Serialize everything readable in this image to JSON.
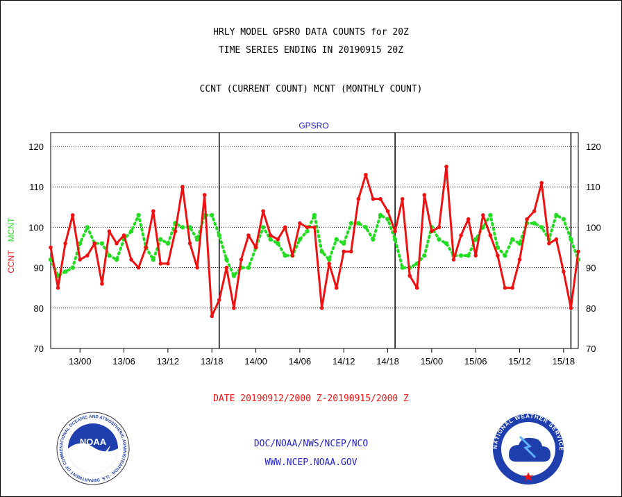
{
  "titles": {
    "line1": "HRLY MODEL GPSRO DATA COUNTS for 20Z",
    "line2": "TIME SERIES ENDING IN 20190915 20Z",
    "line3": "CCNT (CURRENT COUNT) MCNT (MONTHLY COUNT)"
  },
  "footer": {
    "date_range": "DATE 20190912/2000 Z-20190915/2000 Z",
    "org": "DOC/NOAA/NWS/NCEP/NCO",
    "url": "WWW.NCEP.NOAA.GOV"
  },
  "logos": {
    "noaa_text": "NOAA",
    "noaa_ring": "NATIONAL OCEANIC AND ATMOSPHERIC ADMINISTRATION · U.S. DEPARTMENT OF COMMERCE",
    "nws_ring": "NATIONAL WEATHER SERVICE"
  },
  "colors": {
    "ccnt": "#ee1111",
    "mcnt": "#22dd22",
    "title": "#2222cc",
    "date": "#ee1111"
  },
  "chart_data": {
    "type": "line",
    "title": "GPSRO",
    "ylabel": {
      "ccnt": "CCNT",
      "mcnt": "MCNT"
    },
    "ylim": [
      70,
      120
    ],
    "yticks": [
      70,
      80,
      90,
      100,
      110,
      120
    ],
    "xlim": [
      -4,
      68
    ],
    "xticks": [
      {
        "x": 0,
        "label": "13/00"
      },
      {
        "x": 6,
        "label": "13/06"
      },
      {
        "x": 12,
        "label": "13/12"
      },
      {
        "x": 18,
        "label": "13/18"
      },
      {
        "x": 24,
        "label": "14/00"
      },
      {
        "x": 30,
        "label": "14/06"
      },
      {
        "x": 36,
        "label": "14/12"
      },
      {
        "x": 42,
        "label": "14/18"
      },
      {
        "x": 48,
        "label": "15/00"
      },
      {
        "x": 54,
        "label": "15/06"
      },
      {
        "x": 60,
        "label": "15/12"
      },
      {
        "x": 66,
        "label": "15/18"
      }
    ],
    "day_boundaries": [
      19,
      43,
      67
    ],
    "grid": "horizontal dotted",
    "x": [
      -4,
      -3,
      -2,
      -1,
      0,
      1,
      2,
      3,
      4,
      5,
      6,
      7,
      8,
      9,
      10,
      11,
      12,
      13,
      14,
      15,
      16,
      17,
      18,
      19,
      20,
      21,
      22,
      23,
      24,
      25,
      26,
      27,
      28,
      29,
      30,
      31,
      32,
      33,
      34,
      35,
      36,
      37,
      38,
      39,
      40,
      41,
      42,
      43,
      44,
      45,
      46,
      47,
      48,
      49,
      50,
      51,
      52,
      53,
      54,
      55,
      56,
      57,
      58,
      59,
      60,
      61,
      62,
      63,
      64,
      65,
      66,
      67,
      68
    ],
    "series": [
      {
        "name": "CCNT",
        "values": [
          95,
          85,
          96,
          103,
          92,
          93,
          96,
          86,
          99,
          96,
          98,
          92,
          90,
          95,
          104,
          91,
          91,
          99,
          110,
          96,
          90,
          108,
          78,
          82,
          90,
          80,
          92,
          98,
          95,
          104,
          98,
          97,
          100,
          93,
          101,
          100,
          100,
          80,
          91,
          85,
          94,
          94,
          107,
          113,
          107,
          107,
          104,
          99,
          107,
          88,
          85,
          108,
          99,
          100,
          115,
          92,
          98,
          102,
          93,
          103,
          98,
          93,
          85,
          85,
          92,
          102,
          104,
          111,
          96,
          97,
          89,
          80,
          94
        ]
      },
      {
        "name": "MCNT",
        "values": [
          92,
          88,
          89,
          90,
          96,
          100,
          96,
          96,
          93,
          92,
          97,
          99,
          103,
          95,
          92,
          97,
          96,
          101,
          100,
          100,
          97,
          103,
          103,
          98,
          92,
          88,
          90,
          90,
          95,
          100,
          97,
          96,
          93,
          93,
          97,
          99,
          103,
          94,
          92,
          97,
          96,
          101,
          101,
          100,
          97,
          103,
          102,
          97,
          90,
          90,
          91,
          93,
          100,
          97,
          96,
          93,
          93,
          93,
          97,
          100,
          103,
          95,
          93,
          97,
          96,
          101,
          101,
          100,
          97,
          103,
          102,
          97,
          92
        ]
      }
    ]
  }
}
